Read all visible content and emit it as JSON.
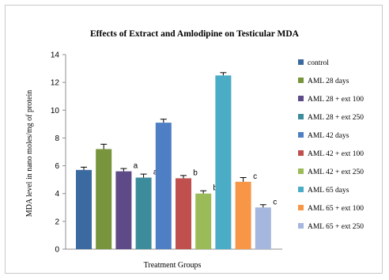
{
  "chart_data": {
    "type": "bar",
    "title": "Effects of Extract and  Amlodipine  on Testicular MDA",
    "xlabel": "Treatment Groups",
    "ylabel": "MDA level in nano moles/mg of protein",
    "ylim": [
      0,
      14
    ],
    "yticks": [
      0,
      2,
      4,
      6,
      8,
      10,
      12,
      14
    ],
    "legend_position": "right",
    "grid": false,
    "series": [
      {
        "name": "control",
        "value": 5.7,
        "error": 0.2,
        "color": "#3b6aa0",
        "annotation": ""
      },
      {
        "name": "AML  28 days",
        "value": 7.2,
        "error": 0.35,
        "color": "#78943c",
        "annotation": ""
      },
      {
        "name": "AML 28 + ext 100",
        "value": 5.6,
        "error": 0.2,
        "color": "#5e4a87",
        "annotation": "a"
      },
      {
        "name": "AML  28 + ext 250",
        "value": 5.15,
        "error": 0.25,
        "color": "#3d8c9c",
        "annotation": "a"
      },
      {
        "name": "AML  42 days",
        "value": 9.1,
        "error": 0.25,
        "color": "#4e7fc4",
        "annotation": ""
      },
      {
        "name": "AML  42 + ext 100",
        "value": 5.1,
        "error": 0.2,
        "color": "#c0504d",
        "annotation": "b"
      },
      {
        "name": "AML  42 + ext 250",
        "value": 4.0,
        "error": 0.2,
        "color": "#9bbb59",
        "annotation": "b"
      },
      {
        "name": "AML  65 days",
        "value": 12.5,
        "error": 0.2,
        "color": "#4bacc6",
        "annotation": ""
      },
      {
        "name": "AML  65 + ext 100",
        "value": 4.85,
        "error": 0.3,
        "color": "#f79646",
        "annotation": "c"
      },
      {
        "name": "AML  65 + ext 250",
        "value": 3.0,
        "error": 0.2,
        "color": "#a5b7de",
        "annotation": "c"
      }
    ]
  }
}
